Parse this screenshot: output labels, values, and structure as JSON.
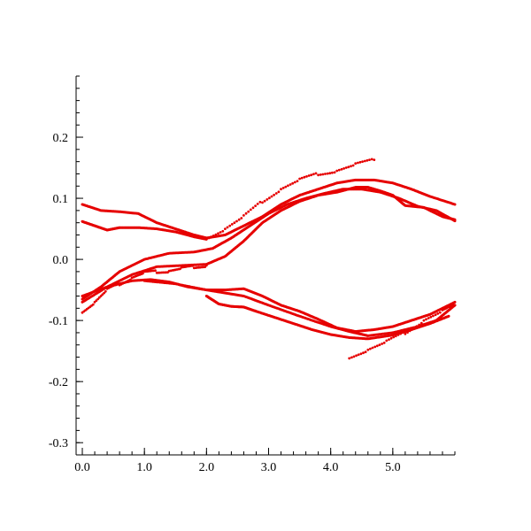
{
  "chart_data": {
    "type": "scatter",
    "title": "",
    "xlabel": "",
    "ylabel": "",
    "xlim": [
      -0.1,
      6.0
    ],
    "ylim": [
      -0.32,
      0.3
    ],
    "x_ticks": [
      0.0,
      1.0,
      2.0,
      3.0,
      4.0,
      5.0
    ],
    "x_tick_labels": [
      "0.0",
      "1.0",
      "2.0",
      "3.0",
      "4.0",
      "5.0"
    ],
    "y_ticks": [
      0.2,
      0.1,
      0.0,
      -0.1,
      -0.2,
      -0.3
    ],
    "y_tick_labels": [
      "0.2",
      "0.1",
      "0.0",
      "-0.1",
      "-0.2",
      "-0.3"
    ],
    "grid": false,
    "legend": "none",
    "color": "#e60000",
    "series": [
      {
        "style": "dense",
        "x": [
          0.0,
          0.3,
          0.6,
          0.9,
          1.2,
          1.5,
          1.8,
          2.0,
          2.3,
          2.6,
          2.9,
          3.2,
          3.5,
          3.8,
          4.1,
          4.4,
          4.7,
          5.0,
          5.3,
          5.6,
          6.0
        ],
        "y": [
          0.09,
          0.08,
          0.078,
          0.075,
          0.06,
          0.05,
          0.04,
          0.035,
          0.04,
          0.055,
          0.07,
          0.09,
          0.105,
          0.115,
          0.125,
          0.13,
          0.13,
          0.125,
          0.115,
          0.103,
          0.09
        ]
      },
      {
        "style": "dense",
        "x": [
          0.0,
          0.2,
          0.4,
          0.6,
          0.9,
          1.2,
          1.5,
          1.8,
          2.0
        ],
        "y": [
          0.062,
          0.055,
          0.048,
          0.052,
          0.052,
          0.05,
          0.045,
          0.037,
          0.033
        ]
      },
      {
        "style": "dense",
        "x": [
          0.0,
          0.3,
          0.6,
          1.0,
          1.4,
          1.8,
          2.1,
          2.4,
          2.7,
          3.0,
          3.3,
          3.6,
          3.9,
          4.2,
          4.5,
          4.8,
          5.1,
          5.4,
          5.7,
          6.0
        ],
        "y": [
          -0.065,
          -0.045,
          -0.02,
          0.0,
          0.01,
          0.012,
          0.018,
          0.035,
          0.055,
          0.075,
          0.09,
          0.1,
          0.108,
          0.115,
          0.115,
          0.11,
          0.1,
          0.087,
          0.08,
          0.063
        ]
      },
      {
        "style": "dense",
        "x": [
          0.0,
          0.4,
          0.8,
          1.2,
          1.6,
          2.0,
          2.3,
          2.6,
          2.9,
          3.2,
          3.5,
          3.8,
          4.1,
          4.4,
          4.6,
          4.8,
          5.0,
          5.2,
          5.5,
          5.8,
          6.0
        ],
        "y": [
          -0.07,
          -0.045,
          -0.025,
          -0.012,
          -0.01,
          -0.008,
          0.005,
          0.03,
          0.06,
          0.08,
          0.095,
          0.105,
          0.11,
          0.118,
          0.118,
          0.112,
          0.105,
          0.088,
          0.085,
          0.07,
          0.065
        ]
      },
      {
        "style": "dense",
        "x": [
          0.0,
          0.4,
          0.8,
          1.1,
          1.4,
          1.7,
          2.0,
          2.3,
          2.6,
          2.9,
          3.2,
          3.5,
          3.8,
          4.1,
          4.4,
          4.7,
          5.0,
          5.3,
          5.6,
          6.0
        ],
        "y": [
          -0.06,
          -0.045,
          -0.035,
          -0.033,
          -0.037,
          -0.045,
          -0.05,
          -0.05,
          -0.048,
          -0.06,
          -0.075,
          -0.085,
          -0.098,
          -0.112,
          -0.118,
          -0.115,
          -0.11,
          -0.1,
          -0.09,
          -0.07
        ]
      },
      {
        "style": "dense",
        "x": [
          1.0,
          1.5,
          2.0,
          2.3,
          2.6,
          3.0,
          3.5,
          4.0,
          4.3,
          4.6,
          5.0,
          5.4,
          5.7,
          6.0
        ],
        "y": [
          -0.035,
          -0.04,
          -0.05,
          -0.055,
          -0.06,
          -0.075,
          -0.093,
          -0.11,
          -0.118,
          -0.125,
          -0.12,
          -0.11,
          -0.1,
          -0.075
        ]
      },
      {
        "style": "dense",
        "x": [
          2.0,
          2.2,
          2.4,
          2.6,
          2.8,
          3.1,
          3.4,
          3.7,
          4.0,
          4.3,
          4.6,
          5.0,
          5.3,
          5.6,
          5.9
        ],
        "y": [
          -0.06,
          -0.073,
          -0.077,
          -0.078,
          -0.085,
          -0.095,
          -0.105,
          -0.115,
          -0.123,
          -0.128,
          -0.13,
          -0.124,
          -0.115,
          -0.105,
          -0.093
        ]
      },
      {
        "style": "sparse",
        "x": [
          2.0,
          2.3,
          2.6,
          2.9,
          3.2,
          3.5,
          3.8,
          4.1,
          4.4,
          4.7
        ],
        "y": [
          0.035,
          0.05,
          0.07,
          0.095,
          0.115,
          0.13,
          0.14,
          0.145,
          0.155,
          0.163
        ]
      },
      {
        "style": "sparse",
        "x": [
          4.3,
          4.6,
          4.9,
          5.2,
          5.5,
          5.8,
          6.0
        ],
        "y": [
          -0.16,
          -0.148,
          -0.135,
          -0.12,
          -0.1,
          -0.085,
          -0.075
        ]
      },
      {
        "style": "sparse",
        "x": [
          0.0,
          0.2,
          0.4,
          0.6,
          0.8,
          1.0,
          1.2,
          1.4,
          1.6,
          1.8,
          2.0
        ],
        "y": [
          -0.085,
          -0.07,
          -0.05,
          -0.04,
          -0.03,
          -0.022,
          -0.02,
          -0.019,
          -0.015,
          -0.012,
          -0.01
        ]
      }
    ]
  }
}
